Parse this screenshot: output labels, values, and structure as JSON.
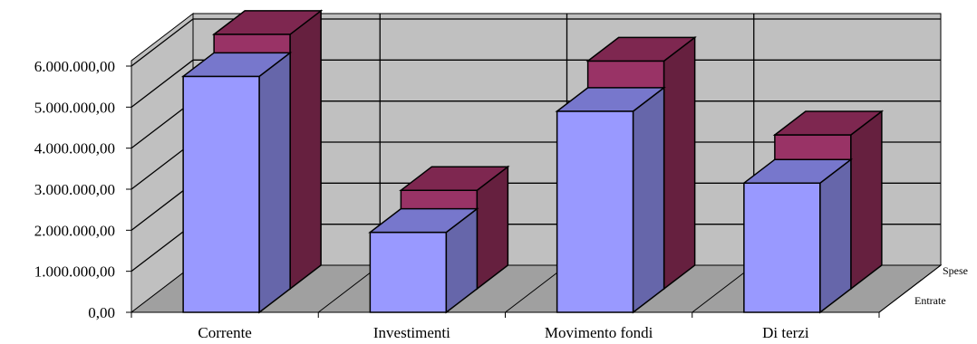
{
  "chart_data": {
    "type": "bar",
    "style": "3d-clustered-depth",
    "categories": [
      "Corrente",
      "Investimenti",
      "Movimento fondi",
      "Di terzi"
    ],
    "series": [
      {
        "name": "Entrate",
        "values": [
          5750000,
          1950000,
          4900000,
          3150000
        ]
      },
      {
        "name": "Spese",
        "values": [
          6200000,
          2400000,
          5550000,
          3750000
        ]
      }
    ],
    "ylim": [
      0,
      6000000
    ],
    "y_ticks": [
      "0,00",
      "1.000.000,00",
      "2.000.000,00",
      "3.000.000,00",
      "4.000.000,00",
      "5.000.000,00",
      "6.000.000,00"
    ],
    "grid": true,
    "colors": {
      "Entrate": {
        "front": "#9999ff",
        "side": "#6666aa",
        "top": "#7777cc"
      },
      "Spese": {
        "front": "#993366",
        "side": "#66203f",
        "top": "#7e2750"
      },
      "wall": "#c0c0c0",
      "floor": "#a0a0a0"
    }
  }
}
